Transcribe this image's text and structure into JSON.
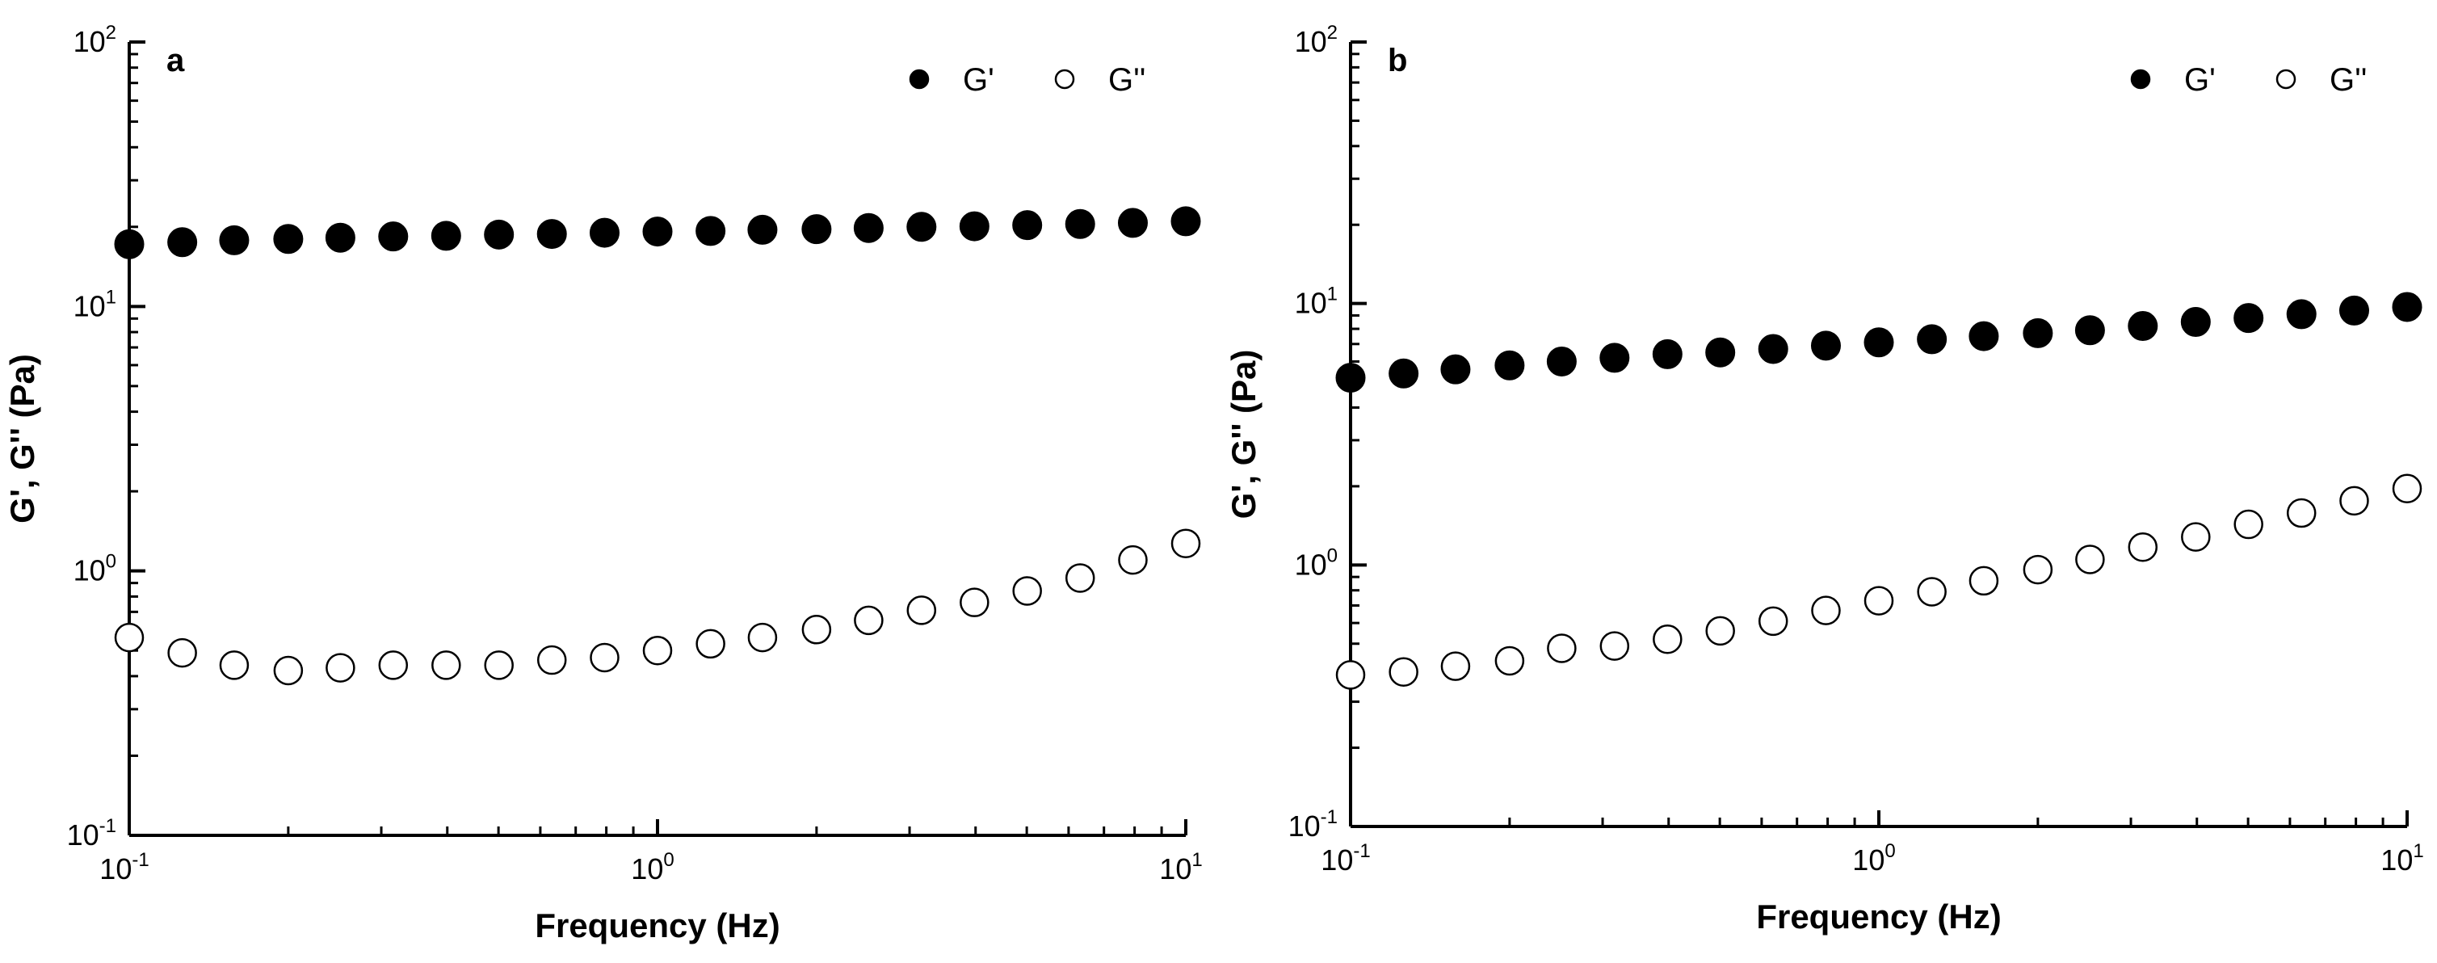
{
  "colors": {
    "axis": "#000000",
    "marker_filled": "#000000",
    "marker_open_fill": "#ffffff",
    "background": "#ffffff"
  },
  "chart_data": [
    {
      "type": "scatter",
      "panel_label": "a",
      "xlabel": "Frequency (Hz)",
      "ylabel": "G', G'' (Pa)",
      "xscale": "log",
      "yscale": "log",
      "xlim": [
        0.1,
        10
      ],
      "ylim": [
        0.1,
        100
      ],
      "x_ticks": [
        {
          "base": "10",
          "exp": "-1"
        },
        {
          "base": "10",
          "exp": "0"
        },
        {
          "base": "10",
          "exp": "1"
        }
      ],
      "y_ticks": [
        {
          "base": "10",
          "exp": "-1"
        },
        {
          "base": "10",
          "exp": "0"
        },
        {
          "base": "10",
          "exp": "1"
        },
        {
          "base": "10",
          "exp": "2"
        }
      ],
      "grid": false,
      "legend_position": "top-right",
      "x": [
        0.1,
        0.126,
        0.158,
        0.2,
        0.251,
        0.316,
        0.398,
        0.501,
        0.631,
        0.794,
        1.0,
        1.26,
        1.58,
        2.0,
        2.51,
        3.16,
        3.98,
        5.01,
        6.31,
        7.94,
        10.0
      ],
      "series": [
        {
          "name": "G'",
          "marker": "filled-circle",
          "values": [
            17.2,
            17.5,
            17.8,
            18.0,
            18.2,
            18.4,
            18.5,
            18.7,
            18.8,
            19.0,
            19.2,
            19.3,
            19.5,
            19.6,
            19.8,
            20.0,
            20.1,
            20.3,
            20.5,
            20.7,
            21.0
          ]
        },
        {
          "name": "G''",
          "marker": "open-circle",
          "values": [
            0.56,
            0.49,
            0.44,
            0.42,
            0.43,
            0.44,
            0.44,
            0.44,
            0.46,
            0.47,
            0.5,
            0.53,
            0.56,
            0.6,
            0.65,
            0.71,
            0.76,
            0.84,
            0.94,
            1.1,
            1.27
          ]
        }
      ]
    },
    {
      "type": "scatter",
      "panel_label": "b",
      "xlabel": "Frequency (Hz)",
      "ylabel": "G', G'' (Pa)",
      "xscale": "log",
      "yscale": "log",
      "xlim": [
        0.1,
        10
      ],
      "ylim": [
        0.1,
        100
      ],
      "x_ticks": [
        {
          "base": "10",
          "exp": "-1"
        },
        {
          "base": "10",
          "exp": "0"
        },
        {
          "base": "10",
          "exp": "1"
        }
      ],
      "y_ticks": [
        {
          "base": "10",
          "exp": "-1"
        },
        {
          "base": "10",
          "exp": "0"
        },
        {
          "base": "10",
          "exp": "1"
        },
        {
          "base": "10",
          "exp": "2"
        }
      ],
      "grid": false,
      "legend_position": "top-right",
      "x": [
        0.1,
        0.126,
        0.158,
        0.2,
        0.251,
        0.316,
        0.398,
        0.501,
        0.631,
        0.794,
        1.0,
        1.26,
        1.58,
        2.0,
        2.51,
        3.16,
        3.98,
        5.01,
        6.31,
        7.94,
        10.0
      ],
      "series": [
        {
          "name": "G'",
          "marker": "filled-circle",
          "values": [
            5.2,
            5.4,
            5.6,
            5.8,
            6.0,
            6.2,
            6.4,
            6.5,
            6.7,
            6.9,
            7.1,
            7.3,
            7.5,
            7.7,
            7.9,
            8.2,
            8.5,
            8.8,
            9.1,
            9.4,
            9.7
          ]
        },
        {
          "name": "G''",
          "marker": "open-circle",
          "values": [
            0.38,
            0.39,
            0.41,
            0.43,
            0.48,
            0.49,
            0.52,
            0.56,
            0.61,
            0.67,
            0.73,
            0.79,
            0.87,
            0.96,
            1.05,
            1.17,
            1.28,
            1.43,
            1.58,
            1.76,
            1.96
          ]
        }
      ]
    }
  ]
}
